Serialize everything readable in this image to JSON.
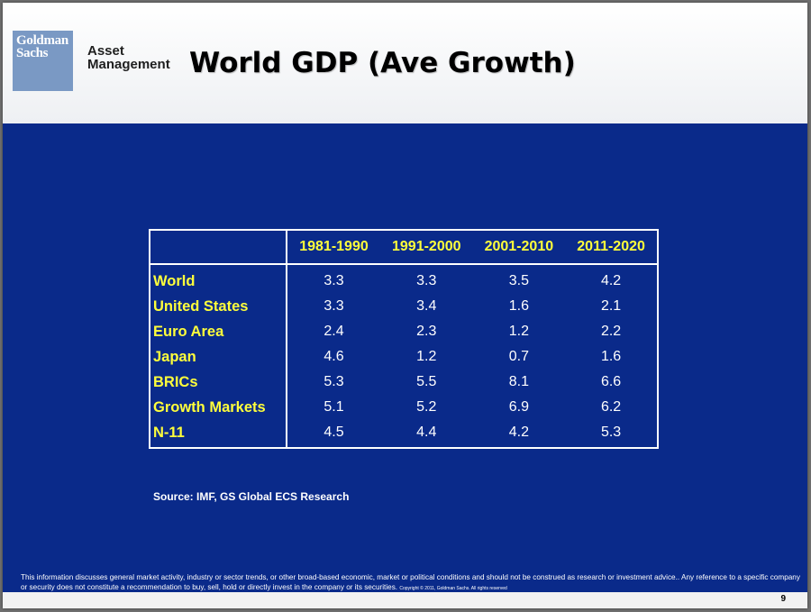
{
  "logo": {
    "line1": "Goldman",
    "line2": "Sachs"
  },
  "brand": {
    "line1": "Asset",
    "line2": "Management"
  },
  "title": "World GDP (Ave Growth)",
  "table": {
    "columns": [
      "1981-1990",
      "1991-2000",
      "2001-2010",
      "2011-2020"
    ],
    "rows": [
      {
        "label": "World",
        "values": [
          "3.3",
          "3.3",
          "3.5",
          "4.2"
        ]
      },
      {
        "label": "United States",
        "values": [
          "3.3",
          "3.4",
          "1.6",
          "2.1"
        ]
      },
      {
        "label": "Euro Area",
        "values": [
          "2.4",
          "2.3",
          "1.2",
          "2.2"
        ]
      },
      {
        "label": "Japan",
        "values": [
          "4.6",
          "1.2",
          "0.7",
          "1.6"
        ]
      },
      {
        "label": "BRICs",
        "values": [
          "5.3",
          "5.5",
          "8.1",
          "6.6"
        ]
      },
      {
        "label": "Growth Markets",
        "values": [
          "5.1",
          "5.2",
          "6.9",
          "6.2"
        ]
      },
      {
        "label": "N-11",
        "values": [
          "4.5",
          "4.4",
          "4.2",
          "5.3"
        ]
      }
    ]
  },
  "source": "Source: IMF, GS Global ECS Research",
  "disclaimer": {
    "line1": "This information discusses general market activity, industry or sector trends, or other broad-based economic, market or political conditions and should not be construed as research or investment advice.. Any reference to a specific company",
    "line2": "or security does not constitute a recommendation to buy, sell, hold or directly invest in the company or its securities.",
    "copyright": "Copyright © 2011, Goldman Sachs. All rights reserved"
  },
  "page_number": "9",
  "colors": {
    "slide_blue": "#0a2a8a",
    "label_yellow": "#ffff3b",
    "logo_blue": "#7a99c4"
  }
}
